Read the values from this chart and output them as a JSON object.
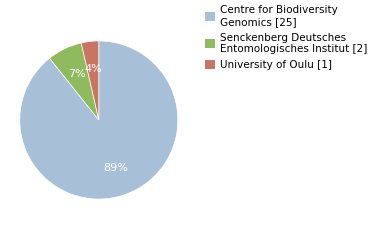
{
  "labels": [
    "Centre for Biodiversity\nGenomics [25]",
    "Senckenberg Deutsches\nEntomologisches Institut [2]",
    "University of Oulu [1]"
  ],
  "values": [
    25,
    2,
    1
  ],
  "colors": [
    "#a8bfd8",
    "#8fba5e",
    "#c87563"
  ],
  "startangle": 90,
  "background_color": "#ffffff",
  "fontsize": 7.5,
  "pct_fontsize": 8
}
